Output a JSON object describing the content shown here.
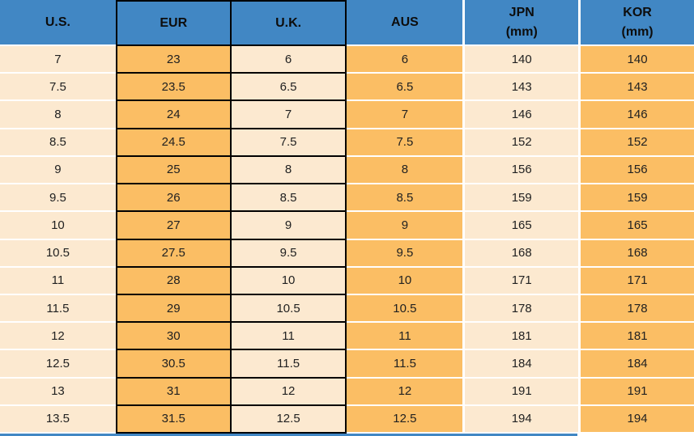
{
  "chart_data": {
    "type": "table",
    "columns": [
      {
        "id": "us",
        "label": "U.S."
      },
      {
        "id": "eur",
        "label": "EUR"
      },
      {
        "id": "uk",
        "label": "U.K."
      },
      {
        "id": "aus",
        "label": "AUS"
      },
      {
        "id": "jpn",
        "label": "JPN",
        "sublabel": "(mm)"
      },
      {
        "id": "kor",
        "label": "KOR",
        "sublabel": "(mm)"
      }
    ],
    "rows": [
      [
        "7",
        "23",
        "6",
        "6",
        "140",
        "140"
      ],
      [
        "7.5",
        "23.5",
        "6.5",
        "6.5",
        "143",
        "143"
      ],
      [
        "8",
        "24",
        "7",
        "7",
        "146",
        "146"
      ],
      [
        "8.5",
        "24.5",
        "7.5",
        "7.5",
        "152",
        "152"
      ],
      [
        "9",
        "25",
        "8",
        "8",
        "156",
        "156"
      ],
      [
        "9.5",
        "26",
        "8.5",
        "8.5",
        "159",
        "159"
      ],
      [
        "10",
        "27",
        "9",
        "9",
        "165",
        "165"
      ],
      [
        "10.5",
        "27.5",
        "9.5",
        "9.5",
        "168",
        "168"
      ],
      [
        "11",
        "28",
        "10",
        "10",
        "171",
        "171"
      ],
      [
        "11.5",
        "29",
        "10.5",
        "10.5",
        "178",
        "178"
      ],
      [
        "12",
        "30",
        "11",
        "11",
        "181",
        "181"
      ],
      [
        "12.5",
        "30.5",
        "11.5",
        "11.5",
        "184",
        "184"
      ],
      [
        "13",
        "31",
        "12",
        "12",
        "191",
        "191"
      ],
      [
        "13.5",
        "31.5",
        "12.5",
        "12.5",
        "194",
        "194"
      ]
    ],
    "layout": {
      "header_position": "top",
      "black_bordered_columns": [
        "eur",
        "uk"
      ],
      "column_fill_pattern": [
        "cream",
        "orange",
        "cream",
        "orange",
        "cream",
        "orange"
      ]
    }
  },
  "colors": {
    "header_bg": "#4187C4",
    "orange_fill": "#FBBE64",
    "cream_fill": "#FCE9D0",
    "border_black": "#000000",
    "separator_white": "#FFFFFF",
    "body_text": "#212121",
    "header_text": "#0D0D0D"
  }
}
